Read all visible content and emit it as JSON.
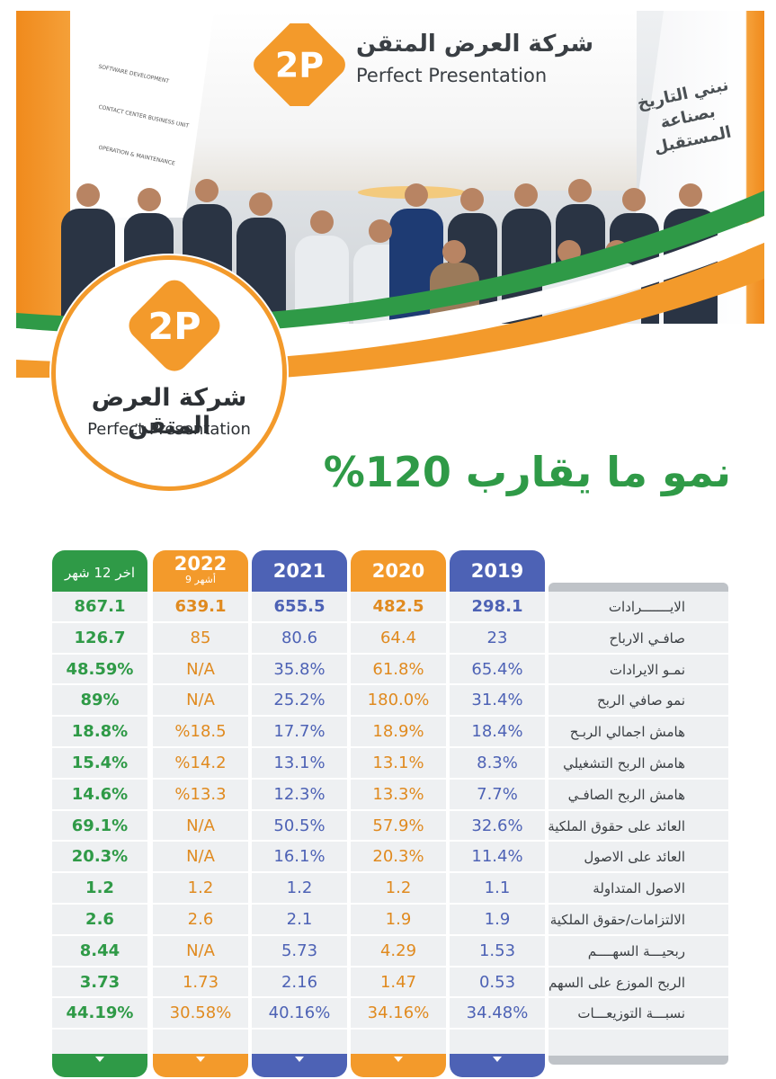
{
  "brand": {
    "name_ar": "شركة العرض المتقن",
    "name_en": "Perfect Presentation",
    "logo_text": "2P",
    "colors": {
      "orange": "#f39a2b",
      "green": "#2f9a47",
      "blue": "#4d62b5",
      "grey": "#bfc3c8"
    }
  },
  "hero": {
    "slogan_line1": "نبني التاريخ",
    "slogan_line2": "بصناعة المستقبل",
    "wall_lines": [
      "SOFTWARE DEVELOPMENT",
      "CONTACT CENTER BUSINESS UNIT",
      "OPERATION & MAINTENANCE"
    ]
  },
  "headline": "نمو ما يقارب 120%",
  "table": {
    "columns": [
      {
        "key": "ttm",
        "label": "اخر 12 شهر",
        "sub": "",
        "color": "green",
        "values": [
          "867.1",
          "126.7",
          "48.59%",
          "89%",
          "18.8%",
          "15.4%",
          "14.6%",
          "69.1%",
          "20.3%",
          "1.2",
          "2.6",
          "8.44",
          "3.73",
          "44.19%"
        ]
      },
      {
        "key": "y2022",
        "label": "2022",
        "sub": "9 أشهر",
        "color": "orange",
        "values": [
          "639.1",
          "85",
          "N/A",
          "N/A",
          "%18.5",
          "%14.2",
          "%13.3",
          "N/A",
          "N/A",
          "1.2",
          "2.6",
          "N/A",
          "1.73",
          "30.58%"
        ]
      },
      {
        "key": "y2021",
        "label": "2021",
        "sub": "",
        "color": "blue",
        "values": [
          "655.5",
          "80.6",
          "35.8%",
          "25.2%",
          "17.7%",
          "13.1%",
          "12.3%",
          "50.5%",
          "16.1%",
          "1.2",
          "2.1",
          "5.73",
          "2.16",
          "40.16%"
        ]
      },
      {
        "key": "y2020",
        "label": "2020",
        "sub": "",
        "color": "orange",
        "values": [
          "482.5",
          "64.4",
          "61.8%",
          "180.0%",
          "18.9%",
          "13.1%",
          "13.3%",
          "57.9%",
          "20.3%",
          "1.2",
          "1.9",
          "4.29",
          "1.47",
          "34.16%"
        ]
      },
      {
        "key": "y2019",
        "label": "2019",
        "sub": "",
        "color": "blue",
        "values": [
          "298.1",
          "23",
          "65.4%",
          "31.4%",
          "18.4%",
          "8.3%",
          "7.7%",
          "32.6%",
          "11.4%",
          "1.1",
          "1.9",
          "1.53",
          "0.53",
          "34.48%"
        ]
      }
    ],
    "row_labels": [
      "الايـــــــرادات",
      "صافـي الارباح",
      "نمـو الايرادات",
      "نمو صافي الربح",
      "هامش اجمالي الربـح",
      "هامش الربح التشغيلي",
      "هامش الربح الصافـي",
      "العائد على حقوق الملكية",
      "العائد على الاصول",
      "الاصول المتداولة",
      "الالتزامات/حقوق الملكية",
      "ربحيـــة السهــــم",
      "الربح الموزع على السهم",
      "نسبـــة التوزيعـــات"
    ]
  }
}
